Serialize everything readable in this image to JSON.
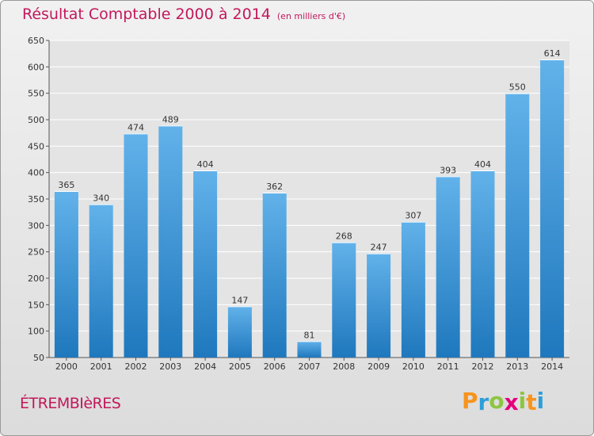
{
  "header": {
    "title": "Résultat Comptable 2000 à 2014",
    "unit": "(en milliers d'€)"
  },
  "commune": "ÉTREMBIèRES",
  "logo": {
    "letters": [
      "P",
      "r",
      "o",
      "x",
      "i",
      "t",
      "i"
    ],
    "colors": [
      "#f7941d",
      "#2e9fd8",
      "#8dc63f",
      "#e4007c",
      "#8dc63f",
      "#f7941d",
      "#2e9fd8"
    ]
  },
  "colors": {
    "bar_top": "#62b2ea",
    "bar_bottom": "#1f78bd",
    "accent": "#c2185b"
  },
  "chart_data": {
    "type": "bar",
    "title": "Résultat Comptable 2000 à 2014",
    "subtitle": "(en milliers d'€)",
    "xlabel": "",
    "ylabel": "",
    "categories": [
      "2000",
      "2001",
      "2002",
      "2003",
      "2004",
      "2005",
      "2006",
      "2007",
      "2008",
      "2009",
      "2010",
      "2011",
      "2012",
      "2013",
      "2014"
    ],
    "values": [
      365,
      340,
      474,
      489,
      404,
      147,
      362,
      81,
      268,
      247,
      307,
      393,
      404,
      550,
      614
    ],
    "ylim": [
      50,
      650
    ],
    "yticks": [
      50,
      100,
      150,
      200,
      250,
      300,
      350,
      400,
      450,
      500,
      550,
      600,
      650
    ],
    "grid": true,
    "data_labels": true
  }
}
